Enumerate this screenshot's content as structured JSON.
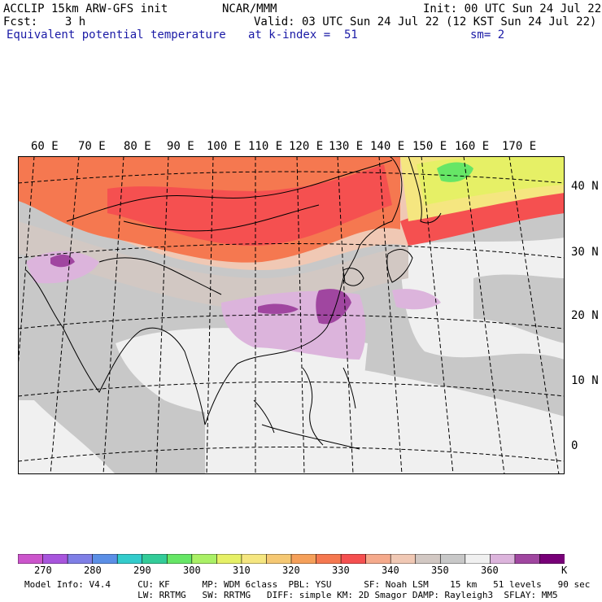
{
  "header": {
    "left1": "ACCLIP 15km ARW-GFS init",
    "center1": "NCAR/MMM",
    "right1": "Init: 00 UTC Sun 24 Jul 22",
    "left2": "Fcst:    3 h",
    "right2": "Valid: 03 UTC Sun 24 Jul 22 (12 KST Sun 24 Jul 22)",
    "field": "Equivalent potential temperature",
    "level": "at k-index =  51",
    "smooth": "sm= 2"
  },
  "map": {
    "lon_labels": [
      "60 E",
      "70 E",
      "80 E",
      "90 E",
      "100 E",
      "110 E",
      "120 E",
      "130 E",
      "140 E",
      "150 E",
      "160 E",
      "170 E"
    ],
    "lat_labels": [
      "40 N",
      "30 N",
      "20 N",
      "10 N",
      "0"
    ]
  },
  "colorbar": {
    "colors": [
      "#cc55cc",
      "#a855dd",
      "#7f7fe6",
      "#5b8fe6",
      "#33cccc",
      "#33cc99",
      "#66e666",
      "#aaf066",
      "#e6f066",
      "#f5e680",
      "#f5c873",
      "#f5a05a",
      "#f57850",
      "#f55050",
      "#f5aa8c",
      "#f0c8b4",
      "#d2c8c3",
      "#c8c8c8",
      "#f0f0f0",
      "#dcb4dc",
      "#a046a0",
      "#780078"
    ],
    "labels": [
      "270",
      "280",
      "290",
      "300",
      "310",
      "320",
      "330",
      "340",
      "350",
      "360",
      "K"
    ]
  },
  "footer": {
    "line1": "Model Info: V4.4     CU: KF      MP: WDM 6class  PBL: YSU      SF: Noah LSM    15 km   51 levels   90 sec",
    "line2": "                     LW: RRTMG   SW: RRTMG   DIFF: simple KM: 2D Smagor DAMP: Rayleigh3  SFLAY: MM5"
  }
}
